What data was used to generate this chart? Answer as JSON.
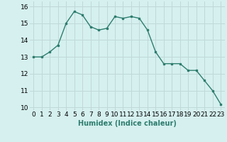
{
  "x": [
    0,
    1,
    2,
    3,
    4,
    5,
    6,
    7,
    8,
    9,
    10,
    11,
    12,
    13,
    14,
    15,
    16,
    17,
    18,
    19,
    20,
    21,
    22,
    23
  ],
  "y": [
    13.0,
    13.0,
    13.3,
    13.7,
    15.0,
    15.7,
    15.5,
    14.8,
    14.6,
    14.7,
    15.4,
    15.3,
    15.4,
    15.3,
    14.6,
    13.3,
    12.6,
    12.6,
    12.6,
    12.2,
    12.2,
    11.6,
    11.0,
    10.2
  ],
  "line_color": "#2e7d6e",
  "marker": "s",
  "marker_size": 2,
  "line_width": 1.0,
  "bg_color": "#d5f0ef",
  "grid_color": "#c0d8d8",
  "xlabel": "Humidex (Indice chaleur)",
  "xlim": [
    -0.5,
    23.5
  ],
  "ylim": [
    9.8,
    16.3
  ],
  "yticks": [
    10,
    11,
    12,
    13,
    14,
    15,
    16
  ],
  "xticks": [
    0,
    1,
    2,
    3,
    4,
    5,
    6,
    7,
    8,
    9,
    10,
    11,
    12,
    13,
    14,
    15,
    16,
    17,
    18,
    19,
    20,
    21,
    22,
    23
  ],
  "xlabel_fontsize": 7,
  "tick_fontsize": 6.5
}
